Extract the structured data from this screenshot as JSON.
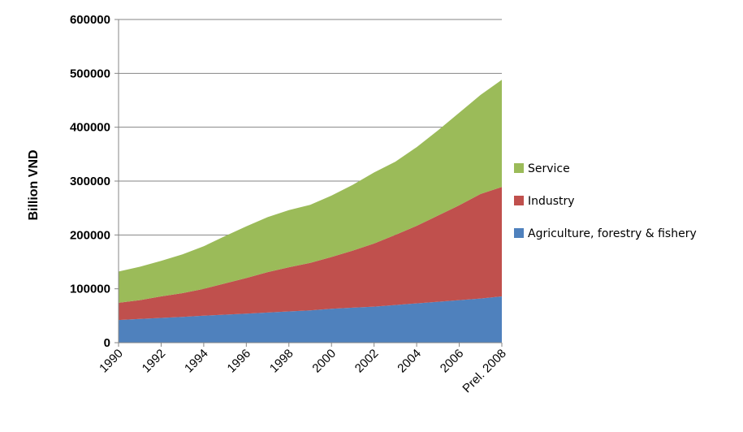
{
  "chart_data": {
    "type": "area",
    "stacked": true,
    "title": "",
    "xlabel": "",
    "ylabel": "Billion VND",
    "ylim": [
      0,
      600000
    ],
    "yticks": [
      0,
      100000,
      200000,
      300000,
      400000,
      500000,
      600000
    ],
    "x": [
      1990,
      1991,
      1992,
      1993,
      1994,
      1995,
      1996,
      1997,
      1998,
      1999,
      2000,
      2001,
      2002,
      2003,
      2004,
      2005,
      2006,
      2007,
      2008
    ],
    "x_tick_labels": [
      "1990",
      "1992",
      "1994",
      "1996",
      "1998",
      "2000",
      "2002",
      "2004",
      "2006",
      "Prel. 2008"
    ],
    "x_tick_values": [
      1990,
      1992,
      1994,
      1996,
      1998,
      2000,
      2002,
      2004,
      2006,
      2008
    ],
    "grid": "horizontal",
    "legend_position": "right",
    "series": [
      {
        "name": "Agriculture, forestry & fishery",
        "color": "#4f81bd",
        "values": [
          42000,
          44000,
          46000,
          48000,
          50000,
          52000,
          54000,
          56000,
          58000,
          60000,
          63000,
          65000,
          67000,
          70000,
          73000,
          76000,
          79000,
          82000,
          86000
        ]
      },
      {
        "name": "Industry",
        "color": "#c0504d",
        "values": [
          32000,
          35000,
          40000,
          44000,
          50000,
          58000,
          66000,
          75000,
          82000,
          88000,
          96000,
          106000,
          117000,
          130000,
          144000,
          160000,
          176000,
          194000,
          203000
        ]
      },
      {
        "name": "Service",
        "color": "#9bbb59",
        "values": [
          58000,
          62000,
          66000,
          72000,
          79000,
          88000,
          96000,
          102000,
          106000,
          108000,
          114000,
          122000,
          132000,
          136000,
          146000,
          158000,
          172000,
          184000,
          199000
        ]
      }
    ]
  }
}
